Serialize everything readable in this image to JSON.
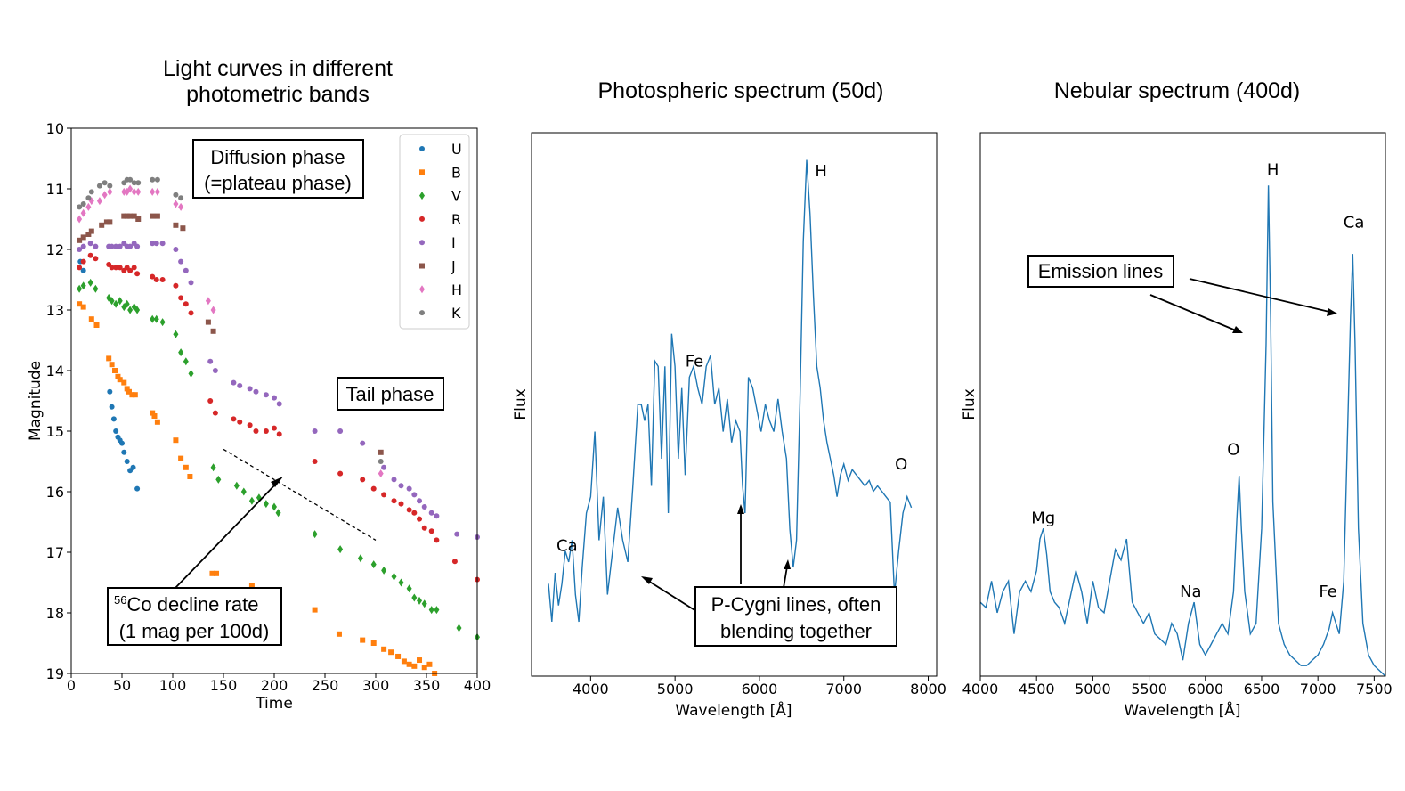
{
  "chart_data": [
    {
      "type": "scatter",
      "title": "Light curves in different photometric bands",
      "title_lines": [
        "Light curves in different",
        "photometric bands"
      ],
      "xlabel": "Time",
      "ylabel": "Magnitude",
      "xlim": [
        0,
        400
      ],
      "ylim": [
        19,
        10
      ],
      "xticks": [
        0,
        50,
        100,
        150,
        200,
        250,
        300,
        350,
        400
      ],
      "yticks": [
        10,
        11,
        12,
        13,
        14,
        15,
        16,
        17,
        18,
        19
      ],
      "legend_position": "top-right",
      "series": [
        {
          "name": "U",
          "color": "#1f77b4",
          "marker": "circle",
          "x": [
            9,
            12,
            38,
            40,
            42,
            44,
            46,
            48,
            50,
            52,
            55,
            58,
            61,
            65
          ],
          "y": [
            12.2,
            12.35,
            14.35,
            14.6,
            14.8,
            15.0,
            15.1,
            15.15,
            15.2,
            15.35,
            15.5,
            15.65,
            15.6,
            15.95
          ]
        },
        {
          "name": "B",
          "color": "#ff7f0e",
          "marker": "square",
          "x": [
            8,
            12,
            20,
            25,
            37,
            40,
            43,
            46,
            48,
            52,
            55,
            57,
            60,
            63,
            80,
            82,
            85,
            103,
            108,
            113,
            117,
            139,
            143,
            178,
            240,
            264,
            287,
            298,
            308,
            315,
            322,
            328,
            333,
            338,
            343,
            348,
            353,
            358
          ],
          "y": [
            12.9,
            12.95,
            13.15,
            13.25,
            13.8,
            13.9,
            14.0,
            14.1,
            14.15,
            14.2,
            14.3,
            14.35,
            14.4,
            14.4,
            14.7,
            14.75,
            14.85,
            15.15,
            15.45,
            15.6,
            15.75,
            17.35,
            17.35,
            17.55,
            17.95,
            18.35,
            18.45,
            18.5,
            18.6,
            18.65,
            18.72,
            18.8,
            18.85,
            18.88,
            18.78,
            18.9,
            18.85,
            19.0
          ]
        },
        {
          "name": "V",
          "color": "#2ca02c",
          "marker": "diamond",
          "x": [
            8,
            12,
            19,
            24,
            37,
            40,
            44,
            48,
            52,
            55,
            58,
            62,
            65,
            80,
            84,
            90,
            103,
            108,
            113,
            118,
            140,
            145,
            163,
            170,
            178,
            185,
            192,
            200,
            204,
            240,
            265,
            285,
            298,
            308,
            318,
            325,
            333,
            338,
            343,
            348,
            355,
            360,
            382,
            400
          ],
          "y": [
            12.65,
            12.6,
            12.55,
            12.65,
            12.8,
            12.85,
            12.9,
            12.85,
            12.95,
            12.9,
            13.0,
            12.95,
            13.0,
            13.15,
            13.15,
            13.2,
            13.4,
            13.7,
            13.85,
            14.05,
            15.6,
            15.8,
            15.9,
            16.0,
            16.15,
            16.1,
            16.2,
            16.25,
            16.35,
            16.7,
            16.95,
            17.1,
            17.2,
            17.3,
            17.4,
            17.5,
            17.6,
            17.75,
            17.8,
            17.85,
            17.95,
            17.95,
            18.25,
            18.4
          ]
        },
        {
          "name": "R",
          "color": "#d62728",
          "marker": "circle",
          "x": [
            8,
            12,
            19,
            24,
            37,
            40,
            44,
            48,
            52,
            55,
            58,
            62,
            65,
            80,
            84,
            90,
            103,
            108,
            113,
            118,
            137,
            142,
            160,
            166,
            176,
            182,
            192,
            200,
            205,
            240,
            265,
            287,
            298,
            308,
            318,
            325,
            333,
            338,
            343,
            348,
            355,
            360,
            378,
            400
          ],
          "y": [
            12.3,
            12.2,
            12.1,
            12.15,
            12.25,
            12.3,
            12.3,
            12.3,
            12.35,
            12.3,
            12.35,
            12.3,
            12.4,
            12.45,
            12.5,
            12.5,
            12.6,
            12.8,
            12.9,
            13.05,
            14.5,
            14.7,
            14.8,
            14.85,
            14.9,
            15.0,
            15.0,
            14.95,
            15.05,
            15.5,
            15.7,
            15.8,
            15.95,
            16.05,
            16.15,
            16.2,
            16.3,
            16.35,
            16.45,
            16.6,
            16.65,
            16.8,
            17.15,
            17.45
          ]
        },
        {
          "name": "I",
          "color": "#9467bd",
          "marker": "circle",
          "x": [
            8,
            12,
            19,
            24,
            37,
            40,
            44,
            48,
            52,
            55,
            58,
            62,
            65,
            80,
            84,
            90,
            103,
            108,
            113,
            118,
            137,
            142,
            160,
            166,
            176,
            182,
            192,
            200,
            205,
            240,
            265,
            287,
            308,
            318,
            325,
            333,
            338,
            343,
            348,
            355,
            360,
            380,
            400
          ],
          "y": [
            12.0,
            11.95,
            11.9,
            11.95,
            11.95,
            11.95,
            11.95,
            11.95,
            11.9,
            11.95,
            11.95,
            11.9,
            11.95,
            11.9,
            11.9,
            11.9,
            12.0,
            12.2,
            12.35,
            12.55,
            13.85,
            14.0,
            14.2,
            14.25,
            14.3,
            14.35,
            14.4,
            14.45,
            14.55,
            15.0,
            15.0,
            15.2,
            15.6,
            15.8,
            15.9,
            15.95,
            16.05,
            16.15,
            16.25,
            16.35,
            16.4,
            16.7,
            16.75
          ]
        },
        {
          "name": "J",
          "color": "#8c564b",
          "marker": "square",
          "x": [
            8,
            12,
            17,
            20,
            30,
            35,
            38,
            52,
            55,
            58,
            62,
            66,
            80,
            85,
            103,
            110,
            135,
            140,
            305
          ],
          "y": [
            11.85,
            11.8,
            11.75,
            11.7,
            11.6,
            11.55,
            11.55,
            11.45,
            11.45,
            11.45,
            11.45,
            11.5,
            11.45,
            11.45,
            11.6,
            11.65,
            13.2,
            13.35,
            15.35
          ]
        },
        {
          "name": "H",
          "color": "#e377c2",
          "marker": "diamond",
          "x": [
            8,
            12,
            17,
            20,
            28,
            33,
            38,
            52,
            55,
            58,
            62,
            66,
            80,
            85,
            103,
            108,
            135,
            140,
            305
          ],
          "y": [
            11.5,
            11.4,
            11.3,
            11.2,
            11.2,
            11.1,
            11.05,
            11.05,
            11.05,
            11.0,
            11.05,
            11.05,
            11.05,
            11.05,
            11.25,
            11.3,
            12.85,
            13.0,
            15.7
          ]
        },
        {
          "name": "K",
          "color": "#7f7f7f",
          "marker": "circle",
          "x": [
            8,
            12,
            17,
            20,
            28,
            33,
            38,
            52,
            55,
            58,
            62,
            66,
            80,
            85,
            103,
            108,
            305
          ],
          "y": [
            11.3,
            11.25,
            11.15,
            11.05,
            10.95,
            10.9,
            10.95,
            10.9,
            10.85,
            10.85,
            10.9,
            10.9,
            10.85,
            10.85,
            11.1,
            11.15,
            15.5
          ]
        }
      ],
      "annotations": {
        "diffusion": [
          "Diffusion phase",
          "(=plateau phase)"
        ],
        "tail": "Tail phase",
        "cobalt_sup": "56",
        "cobalt_line1": "Co decline rate",
        "cobalt_line2": "(1 mag per 100d)"
      },
      "decline_line": {
        "x": [
          150,
          300
        ],
        "y": [
          15.3,
          16.8
        ]
      }
    },
    {
      "type": "line",
      "title": "Photospheric spectrum (50d)",
      "xlabel": "Wavelength [Å]",
      "ylabel": "Flux",
      "xlim": [
        3300,
        8100
      ],
      "ylim": [
        0.05,
        1.05
      ],
      "xticks": [
        4000,
        5000,
        6000,
        7000,
        8000
      ],
      "color": "#1f77b4",
      "x": [
        3500,
        3540,
        3580,
        3620,
        3660,
        3700,
        3740,
        3780,
        3820,
        3860,
        3900,
        3950,
        4000,
        4050,
        4100,
        4150,
        4200,
        4260,
        4320,
        4380,
        4440,
        4500,
        4560,
        4600,
        4640,
        4680,
        4720,
        4760,
        4800,
        4840,
        4880,
        4920,
        4960,
        5000,
        5040,
        5080,
        5120,
        5170,
        5220,
        5270,
        5320,
        5370,
        5420,
        5470,
        5520,
        5570,
        5620,
        5670,
        5720,
        5770,
        5800,
        5830,
        5870,
        5920,
        5970,
        6020,
        6070,
        6120,
        6170,
        6220,
        6270,
        6320,
        6360,
        6400,
        6440,
        6480,
        6520,
        6560,
        6600,
        6640,
        6680,
        6720,
        6760,
        6800,
        6840,
        6880,
        6920,
        6960,
        7000,
        7050,
        7100,
        7150,
        7200,
        7250,
        7300,
        7350,
        7400,
        7450,
        7500,
        7550,
        7600,
        7650,
        7700,
        7750,
        7800
      ],
      "y": [
        0.22,
        0.15,
        0.24,
        0.18,
        0.22,
        0.28,
        0.26,
        0.3,
        0.2,
        0.15,
        0.25,
        0.35,
        0.38,
        0.5,
        0.3,
        0.38,
        0.2,
        0.28,
        0.36,
        0.3,
        0.26,
        0.4,
        0.55,
        0.55,
        0.52,
        0.55,
        0.4,
        0.63,
        0.62,
        0.45,
        0.62,
        0.35,
        0.68,
        0.62,
        0.45,
        0.58,
        0.42,
        0.6,
        0.62,
        0.58,
        0.55,
        0.62,
        0.64,
        0.55,
        0.58,
        0.5,
        0.56,
        0.48,
        0.52,
        0.5,
        0.4,
        0.35,
        0.6,
        0.58,
        0.54,
        0.5,
        0.55,
        0.52,
        0.5,
        0.56,
        0.5,
        0.45,
        0.32,
        0.25,
        0.3,
        0.55,
        0.85,
        1.0,
        0.9,
        0.75,
        0.62,
        0.58,
        0.52,
        0.48,
        0.45,
        0.42,
        0.38,
        0.42,
        0.44,
        0.41,
        0.43,
        0.42,
        0.41,
        0.4,
        0.41,
        0.39,
        0.4,
        0.39,
        0.38,
        0.37,
        0.2,
        0.28,
        0.35,
        0.38,
        0.36
      ],
      "line_labels": [
        {
          "text": "H",
          "x": 6730,
          "y": 0.97
        },
        {
          "text": "Fe",
          "x": 5230,
          "y": 0.62
        },
        {
          "text": "O",
          "x": 7680,
          "y": 0.43
        },
        {
          "text": "Ca",
          "x": 3720,
          "y": 0.28
        }
      ],
      "annotations": {
        "pcygni": [
          "P-Cygni lines, often",
          "blending together"
        ]
      }
    },
    {
      "type": "line",
      "title": "Nebular spectrum (400d)",
      "xlabel": "Wavelength [Å]",
      "ylabel": "Flux",
      "xlim": [
        4000,
        7600
      ],
      "ylim": [
        0.02,
        1.05
      ],
      "xticks": [
        4000,
        4500,
        5000,
        5500,
        6000,
        6500,
        7000,
        7500
      ],
      "color": "#1f77b4",
      "x": [
        4000,
        4050,
        4100,
        4150,
        4200,
        4250,
        4300,
        4350,
        4400,
        4450,
        4500,
        4530,
        4560,
        4590,
        4620,
        4660,
        4700,
        4750,
        4800,
        4850,
        4900,
        4950,
        5000,
        5050,
        5100,
        5150,
        5200,
        5250,
        5300,
        5350,
        5400,
        5450,
        5500,
        5550,
        5600,
        5650,
        5700,
        5750,
        5800,
        5850,
        5900,
        5950,
        6000,
        6050,
        6100,
        6150,
        6200,
        6250,
        6280,
        6300,
        6320,
        6350,
        6400,
        6450,
        6500,
        6540,
        6560,
        6580,
        6600,
        6650,
        6700,
        6750,
        6800,
        6850,
        6900,
        6950,
        7000,
        7050,
        7100,
        7130,
        7160,
        7190,
        7230,
        7260,
        7290,
        7310,
        7330,
        7360,
        7400,
        7450,
        7500,
        7550,
        7600
      ],
      "y": [
        0.16,
        0.15,
        0.2,
        0.14,
        0.18,
        0.2,
        0.1,
        0.18,
        0.2,
        0.18,
        0.22,
        0.28,
        0.3,
        0.25,
        0.18,
        0.16,
        0.15,
        0.12,
        0.17,
        0.22,
        0.18,
        0.12,
        0.2,
        0.15,
        0.14,
        0.2,
        0.26,
        0.24,
        0.28,
        0.16,
        0.14,
        0.12,
        0.14,
        0.1,
        0.09,
        0.08,
        0.12,
        0.1,
        0.05,
        0.12,
        0.16,
        0.08,
        0.06,
        0.08,
        0.1,
        0.12,
        0.1,
        0.18,
        0.32,
        0.4,
        0.3,
        0.18,
        0.1,
        0.12,
        0.3,
        0.65,
        0.95,
        0.7,
        0.35,
        0.12,
        0.08,
        0.06,
        0.05,
        0.04,
        0.04,
        0.05,
        0.06,
        0.08,
        0.11,
        0.14,
        0.12,
        0.1,
        0.2,
        0.45,
        0.7,
        0.82,
        0.65,
        0.3,
        0.12,
        0.06,
        0.04,
        0.03,
        0.02
      ],
      "line_labels": [
        {
          "text": "H",
          "x": 6600,
          "y": 0.97
        },
        {
          "text": "Ca",
          "x": 7320,
          "y": 0.87
        },
        {
          "text": "O",
          "x": 6250,
          "y": 0.44
        },
        {
          "text": "Mg",
          "x": 4560,
          "y": 0.31
        },
        {
          "text": "Na",
          "x": 5870,
          "y": 0.17
        },
        {
          "text": "Fe",
          "x": 7090,
          "y": 0.17
        }
      ],
      "annotations": {
        "emission": "Emission lines"
      }
    }
  ]
}
